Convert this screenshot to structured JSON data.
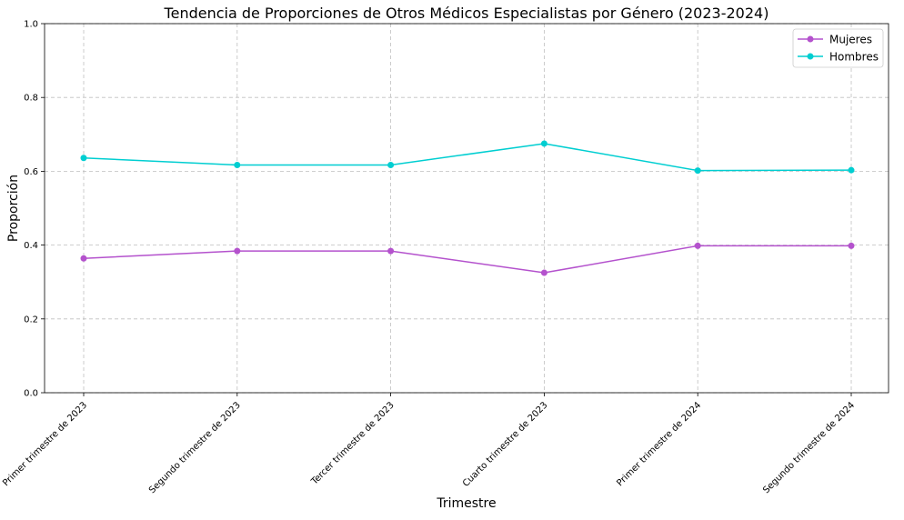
{
  "chart_data": {
    "type": "line",
    "title": "Tendencia de Proporciones de Otros Médicos Especialistas por Género (2023-2024)",
    "xlabel": "Trimestre",
    "ylabel": "Proporción",
    "ylim": [
      0,
      1
    ],
    "yticks": [
      "0.0",
      "0.2",
      "0.4",
      "0.6",
      "0.8",
      "1.0"
    ],
    "categories": [
      "Primer trimestre de 2023",
      "Segundo trimestre de 2023",
      "Tercer trimestre de 2023",
      "Cuarto trimestre de 2023",
      "Primer trimestre de 2024",
      "Segundo trimestre de 2024"
    ],
    "series": [
      {
        "name": "Mujeres",
        "color": "#b452cd",
        "values": [
          0.364,
          0.384,
          0.384,
          0.325,
          0.398,
          0.398
        ]
      },
      {
        "name": "Hombres",
        "color": "#00ced1",
        "values": [
          0.636,
          0.617,
          0.617,
          0.675,
          0.602,
          0.603
        ]
      }
    ],
    "grid": true,
    "legend_position": "top-right"
  }
}
